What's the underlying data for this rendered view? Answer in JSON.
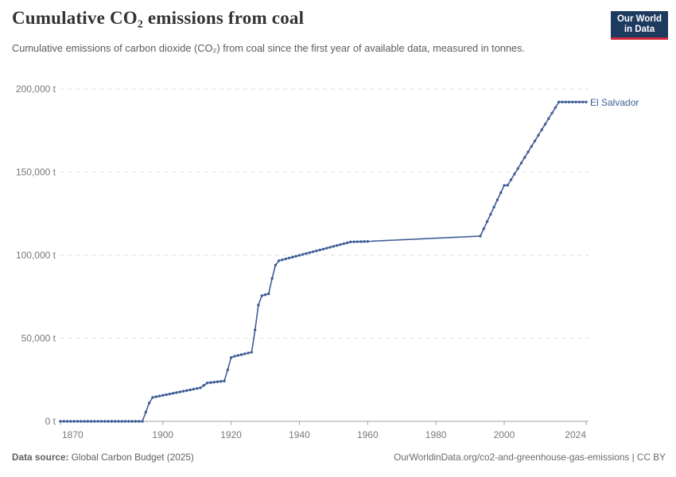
{
  "header": {
    "title": "Cumulative CO₂ emissions from coal",
    "subtitle": "Cumulative emissions of carbon dioxide (CO₂) from coal since the first year of available data, measured in tonnes.",
    "logo": {
      "line1": "Our World",
      "line2": "in Data"
    }
  },
  "chart_data": {
    "type": "line",
    "title": "Cumulative CO₂ emissions from coal",
    "ylabel": "",
    "xlabel": "",
    "unit": "t",
    "grid": "dashed-horizontal",
    "legend_position": "end-of-line-label",
    "x": {
      "min": 1870,
      "max": 2024,
      "ticks": [
        1870,
        1900,
        1920,
        1940,
        1960,
        1980,
        2000,
        2024
      ]
    },
    "y": {
      "min": 0,
      "max": 200000,
      "ticks": [
        0,
        50000,
        100000,
        150000,
        200000
      ],
      "tick_suffix": " t"
    },
    "series": [
      {
        "name": "El Salvador",
        "color": "#3e5d96",
        "anchors": [
          [
            1870,
            0
          ],
          [
            1894,
            0
          ],
          [
            1895,
            5500
          ],
          [
            1896,
            11000
          ],
          [
            1897,
            14400
          ],
          [
            1911,
            20200
          ],
          [
            1913,
            23100
          ],
          [
            1918,
            24300
          ],
          [
            1919,
            31000
          ],
          [
            1920,
            38400
          ],
          [
            1921,
            39200
          ],
          [
            1926,
            41600
          ],
          [
            1927,
            55000
          ],
          [
            1928,
            70000
          ],
          [
            1929,
            75600
          ],
          [
            1931,
            76800
          ],
          [
            1932,
            86000
          ],
          [
            1933,
            94000
          ],
          [
            1934,
            96700
          ],
          [
            1955,
            108000
          ],
          [
            1960,
            108300
          ],
          [
            1993,
            111500
          ],
          [
            2000,
            142000
          ],
          [
            2001,
            142100
          ],
          [
            2016,
            192200
          ],
          [
            2024,
            192200
          ]
        ],
        "marker_years": [
          [
            1870,
            1960
          ],
          [
            1993,
            2024
          ]
        ]
      }
    ]
  },
  "footer": {
    "data_source_label": "Data source:",
    "data_source_value": " Global Carbon Budget (2025)",
    "credit": "OurWorldinData.org/co2-and-greenhouse-gas-emissions | CC BY"
  },
  "colors": {
    "line": "#3e5d96",
    "logo_bg": "#1d3a5f",
    "logo_accent": "#d1273c",
    "gridline": "#dedede",
    "axis": "#a1a1a1",
    "tick_text": "#787878"
  }
}
